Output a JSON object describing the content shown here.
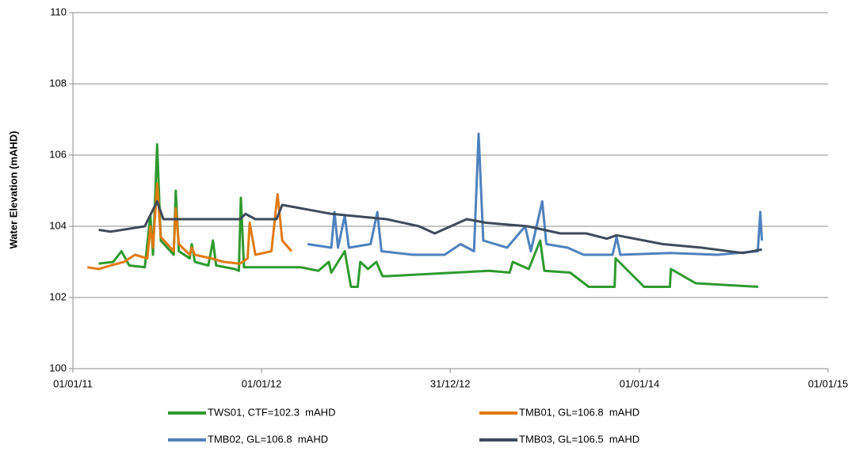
{
  "chart_data": {
    "type": "line",
    "y_label": "Water Elevation (mAHD)",
    "xlim": [
      "2011-01-01",
      "2015-01-01"
    ],
    "xticks": [
      {
        "value": "2011-01-01",
        "label": "01/01/11"
      },
      {
        "value": "2012-01-01",
        "label": "01/01/12"
      },
      {
        "value": "2012-12-31",
        "label": "31/12/12"
      },
      {
        "value": "2014-01-01",
        "label": "01/01/14"
      },
      {
        "value": "2015-01-01",
        "label": "01/01/15"
      }
    ],
    "ylim": [
      100,
      110
    ],
    "yticks": [
      100,
      102,
      104,
      106,
      108,
      110
    ],
    "grid": true,
    "series": [
      {
        "name": "TWS01, CTF=102.3  mAHD",
        "color": "#2e9a2e",
        "x": [
          "2011-02-20",
          "2011-03-20",
          "2011-04-05",
          "2011-04-20",
          "2011-05-20",
          "2011-05-31",
          "2011-06-05",
          "2011-06-13",
          "2011-06-20",
          "2011-07-15",
          "2011-07-19",
          "2011-07-25",
          "2011-08-15",
          "2011-08-19",
          "2011-08-25",
          "2011-09-20",
          "2011-09-29",
          "2011-10-05",
          "2011-11-10",
          "2011-11-18",
          "2011-11-22",
          "2011-11-28",
          "2012-03-17",
          "2012-04-20",
          "2012-05-10",
          "2012-05-15",
          "2012-06-10",
          "2012-06-22",
          "2012-07-05",
          "2012-07-10",
          "2012-07-25",
          "2012-08-10",
          "2012-08-22",
          "2012-09-01",
          "2013-03-16",
          "2013-04-25",
          "2013-05-01",
          "2013-06-01",
          "2013-06-23",
          "2013-07-01",
          "2013-08-20",
          "2013-09-25",
          "2013-11-14",
          "2013-11-16",
          "2014-01-10",
          "2014-03-01",
          "2014-03-03",
          "2014-04-20",
          "2014-08-19"
        ],
        "values": [
          102.95,
          103.0,
          103.3,
          102.9,
          102.85,
          104.3,
          103.2,
          106.3,
          103.6,
          103.2,
          105.0,
          103.3,
          103.1,
          103.5,
          103.0,
          102.9,
          103.6,
          102.9,
          102.8,
          102.75,
          104.8,
          102.85,
          102.85,
          102.75,
          103.0,
          102.7,
          103.3,
          102.3,
          102.3,
          103.0,
          102.8,
          103.0,
          102.6,
          102.6,
          102.75,
          102.7,
          103.0,
          102.8,
          103.6,
          102.75,
          102.7,
          102.3,
          102.3,
          103.1,
          102.3,
          102.3,
          102.8,
          102.4,
          102.3
        ]
      },
      {
        "name": "TMB01, GL=106.8  mAHD",
        "color": "#e07a10",
        "x": [
          "2011-01-29",
          "2011-02-20",
          "2011-03-15",
          "2011-04-10",
          "2011-05-01",
          "2011-05-25",
          "2011-05-31",
          "2011-06-05",
          "2011-06-13",
          "2011-06-20",
          "2011-07-15",
          "2011-07-19",
          "2011-07-25",
          "2011-08-15",
          "2011-08-19",
          "2011-08-25",
          "2011-09-25",
          "2011-10-20",
          "2011-11-20",
          "2011-12-05",
          "2011-12-09",
          "2011-12-20",
          "2012-01-20",
          "2012-02-01",
          "2012-02-10",
          "2012-02-28"
        ],
        "values": [
          102.85,
          102.8,
          102.9,
          103.0,
          103.2,
          103.1,
          104.0,
          103.4,
          105.2,
          103.7,
          103.3,
          104.5,
          103.5,
          103.2,
          103.4,
          103.2,
          103.1,
          103.0,
          102.95,
          103.1,
          104.1,
          103.2,
          103.3,
          104.9,
          103.6,
          103.3
        ]
      },
      {
        "name": "TMB02, GL=106.8  mAHD",
        "color": "#4f81bd",
        "x": [
          "2012-03-30",
          "2012-05-15",
          "2012-05-21",
          "2012-05-28",
          "2012-06-10",
          "2012-06-18",
          "2012-07-30",
          "2012-08-12",
          "2012-08-20",
          "2012-10-20",
          "2012-12-20",
          "2013-01-20",
          "2013-02-15",
          "2013-02-24",
          "2013-03-05",
          "2013-04-20",
          "2013-05-25",
          "2013-06-05",
          "2013-06-27",
          "2013-07-05",
          "2013-08-15",
          "2013-09-15",
          "2013-11-10",
          "2013-11-18",
          "2013-11-25",
          "2014-03-01",
          "2014-06-01",
          "2014-08-18",
          "2014-08-23",
          "2014-08-26"
        ],
        "values": [
          103.5,
          103.4,
          104.4,
          103.4,
          104.3,
          103.4,
          103.5,
          104.4,
          103.3,
          103.2,
          103.2,
          103.5,
          103.3,
          106.6,
          103.6,
          103.4,
          104.0,
          103.3,
          104.7,
          103.5,
          103.4,
          103.2,
          103.2,
          103.7,
          103.2,
          103.25,
          103.2,
          103.3,
          104.4,
          103.6
        ]
      },
      {
        "name": "TMB03, GL=106.5  mAHD",
        "color": "#3e4a5a",
        "x": [
          "2011-02-20",
          "2011-03-15",
          "2011-05-20",
          "2011-06-13",
          "2011-06-25",
          "2011-09-01",
          "2011-11-20",
          "2011-12-01",
          "2011-12-20",
          "2012-01-30",
          "2012-02-10",
          "2012-05-15",
          "2012-08-30",
          "2012-11-01",
          "2012-12-01",
          "2013-02-01",
          "2013-03-10",
          "2013-05-30",
          "2013-08-01",
          "2013-09-20",
          "2013-10-30",
          "2013-11-18",
          "2014-02-15",
          "2014-05-01",
          "2014-07-20",
          "2014-08-26"
        ],
        "values": [
          103.9,
          103.85,
          104.0,
          104.7,
          104.2,
          104.2,
          104.2,
          104.35,
          104.2,
          104.2,
          104.6,
          104.35,
          104.2,
          104.0,
          103.8,
          104.2,
          104.1,
          104.0,
          103.8,
          103.8,
          103.65,
          103.75,
          103.5,
          103.4,
          103.25,
          103.35
        ]
      }
    ]
  }
}
